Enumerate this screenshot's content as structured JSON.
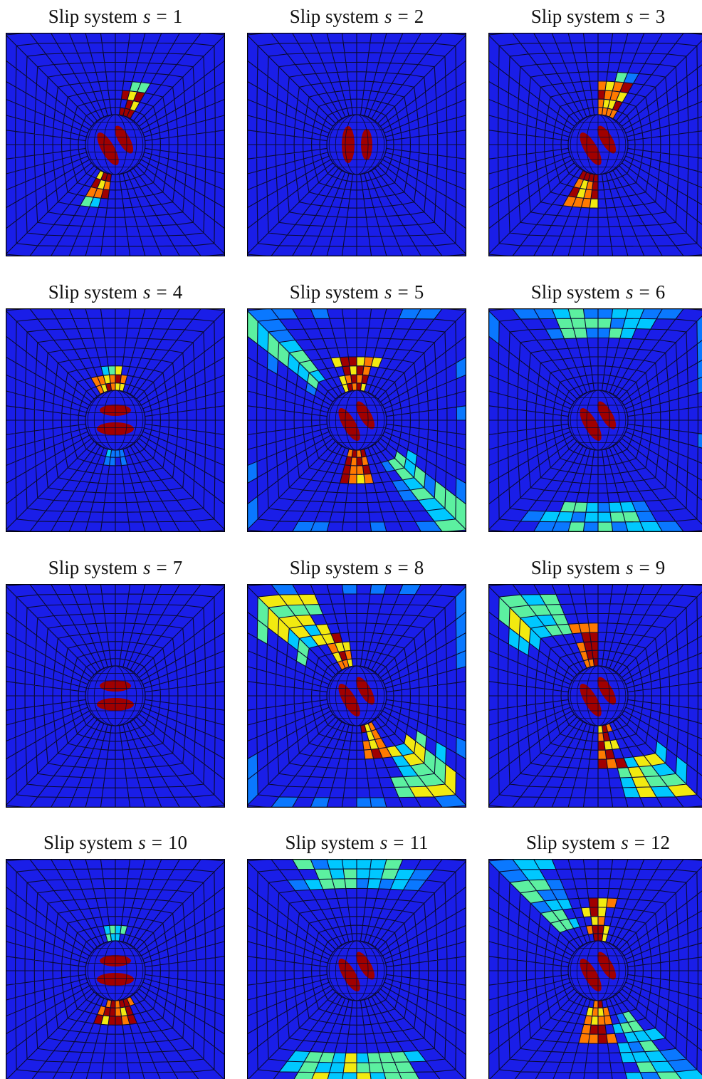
{
  "figure": {
    "panels": [
      {
        "prefix": "Slip system",
        "symbol": "s",
        "relation": "=",
        "index": "1"
      },
      {
        "prefix": "Slip system",
        "symbol": "s",
        "relation": "=",
        "index": "2"
      },
      {
        "prefix": "Slip system",
        "symbol": "s",
        "relation": "=",
        "index": "3"
      },
      {
        "prefix": "Slip system",
        "symbol": "s",
        "relation": "=",
        "index": "4"
      },
      {
        "prefix": "Slip system",
        "symbol": "s",
        "relation": "=",
        "index": "5"
      },
      {
        "prefix": "Slip system",
        "symbol": "s",
        "relation": "=",
        "index": "6"
      },
      {
        "prefix": "Slip system",
        "symbol": "s",
        "relation": "=",
        "index": "7"
      },
      {
        "prefix": "Slip system",
        "symbol": "s",
        "relation": "=",
        "index": "8"
      },
      {
        "prefix": "Slip system",
        "symbol": "s",
        "relation": "=",
        "index": "9"
      },
      {
        "prefix": "Slip system",
        "symbol": "s",
        "relation": "=",
        "index": "10"
      },
      {
        "prefix": "Slip system",
        "symbol": "s",
        "relation": "=",
        "index": "11"
      },
      {
        "prefix": "Slip system",
        "symbol": "s",
        "relation": "=",
        "index": "12"
      }
    ]
  }
}
